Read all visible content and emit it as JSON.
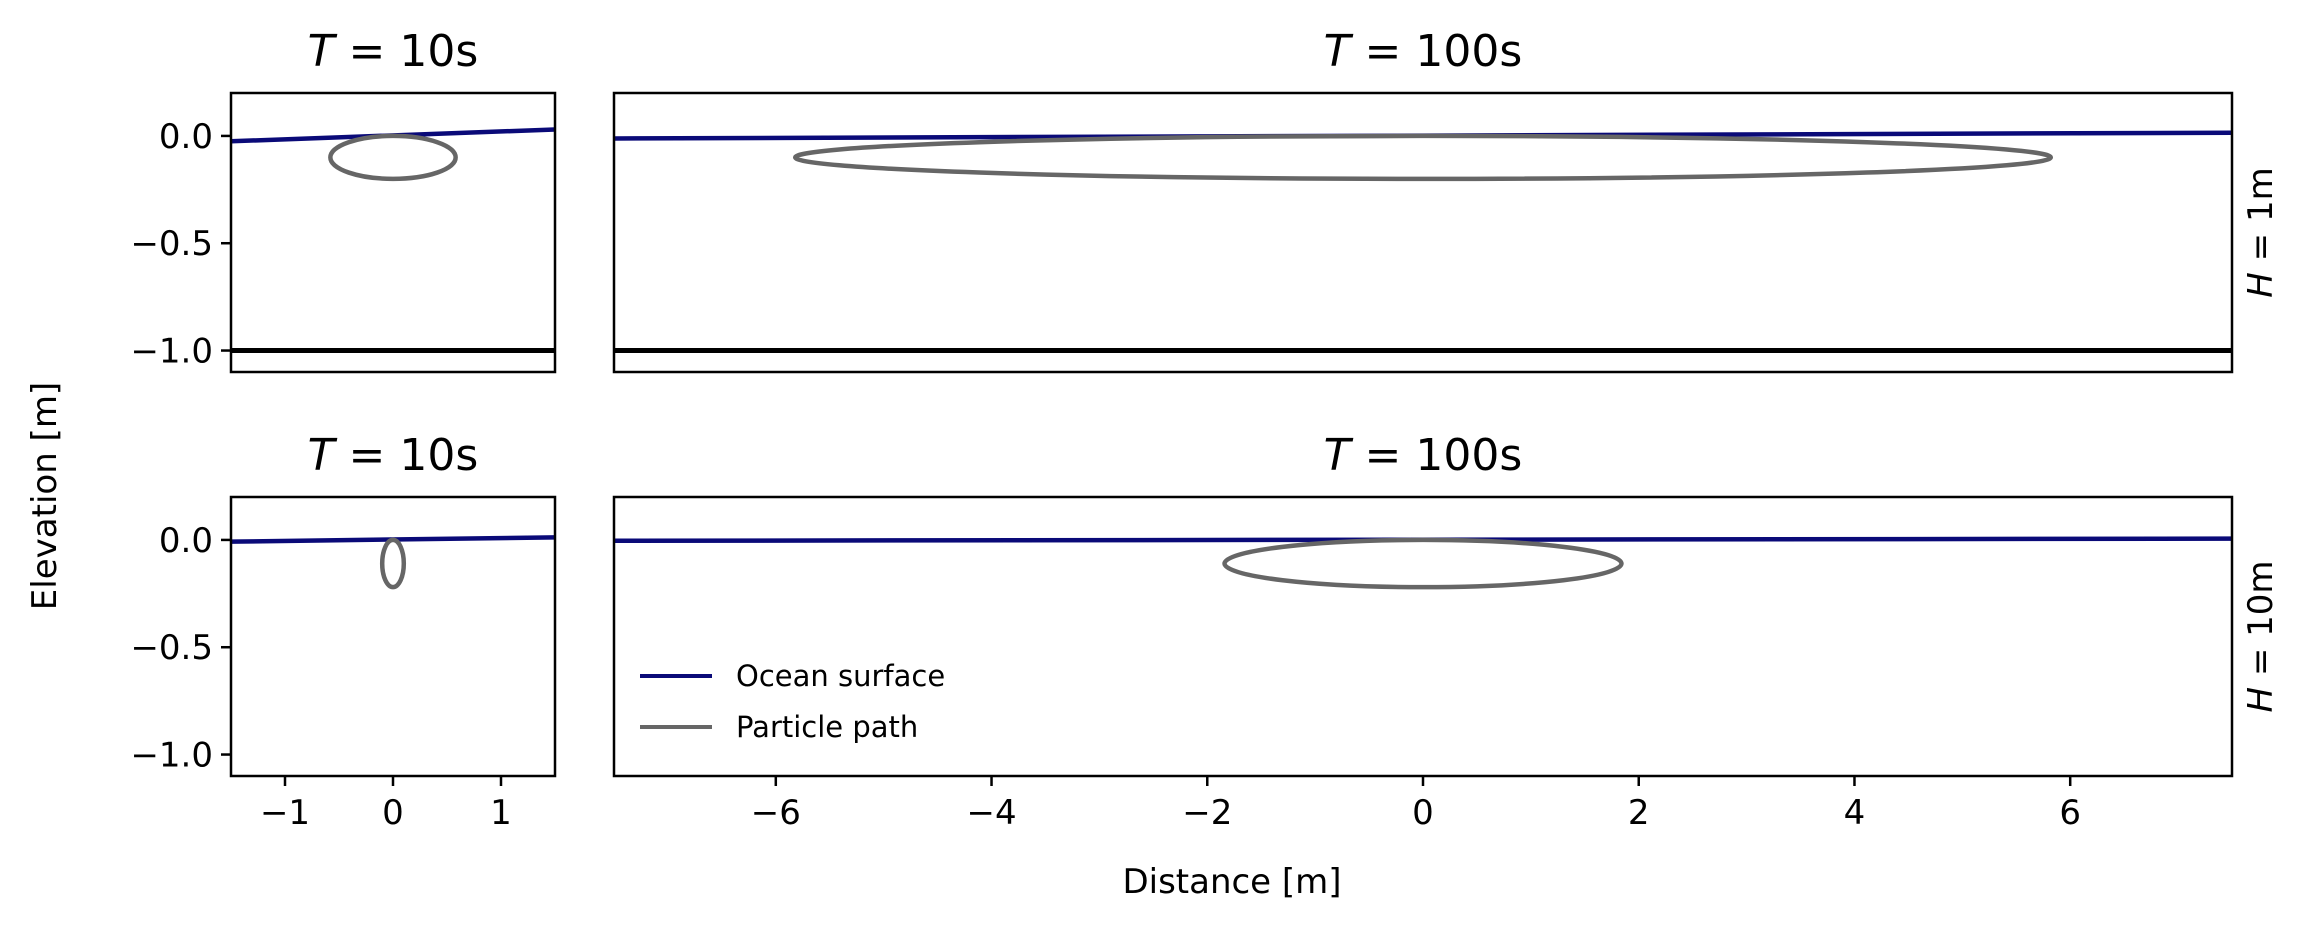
{
  "colors": {
    "surface": "#0a0a78",
    "path": "#666666",
    "bottom": "#000000",
    "frame": "#000000"
  },
  "figure": {
    "xlabel": "Distance [m]",
    "ylabel": "Elevation [m]"
  },
  "legend": {
    "placement": "lower-left",
    "items": [
      {
        "label": "Ocean surface",
        "color": "#0a0a78"
      },
      {
        "label": "Particle path",
        "color": "#666666"
      }
    ]
  },
  "chart_data": [
    {
      "type": "line",
      "panel": "top-left",
      "title_var": "T",
      "title_val": "10s",
      "row_var": "",
      "row_val": "",
      "xlim": [
        -1.5,
        1.5
      ],
      "ylim": [
        -1.1,
        0.2
      ],
      "xticks": [],
      "yticks": [
        0.0,
        -0.5,
        -1.0
      ],
      "ytick_labels": [
        "0.0",
        "−0.5",
        "−1.0"
      ],
      "surface": {
        "x": [
          -1.5,
          1.5
        ],
        "y": [
          -0.025,
          0.03
        ]
      },
      "path": {
        "cx": 0,
        "cy": -0.1,
        "rx": 0.58,
        "ry": 0.1
      },
      "bottom": -1.0
    },
    {
      "type": "line",
      "panel": "top-right",
      "title_var": "T",
      "title_val": "100s",
      "row_var": "H",
      "row_val": "1m",
      "xlim": [
        -7.5,
        7.5
      ],
      "ylim": [
        -1.1,
        0.2
      ],
      "xticks": [],
      "yticks": [],
      "surface": {
        "x": [
          -7.5,
          7.5
        ],
        "y": [
          -0.012,
          0.015
        ]
      },
      "path": {
        "cx": 0,
        "cy": -0.1,
        "rx": 5.82,
        "ry": 0.1
      },
      "bottom": -1.0
    },
    {
      "type": "line",
      "panel": "bottom-left",
      "title_var": "T",
      "title_val": "10s",
      "row_var": "",
      "row_val": "",
      "xlim": [
        -1.5,
        1.5
      ],
      "ylim": [
        -1.1,
        0.2
      ],
      "xticks": [
        -1,
        0,
        1
      ],
      "xtick_labels": [
        "−1",
        "0",
        "1"
      ],
      "yticks": [
        0.0,
        -0.5,
        -1.0
      ],
      "ytick_labels": [
        "0.0",
        "−0.5",
        "−1.0"
      ],
      "surface": {
        "x": [
          -1.5,
          1.5
        ],
        "y": [
          -0.008,
          0.012
        ]
      },
      "path": {
        "cx": 0,
        "cy": -0.11,
        "rx": 0.1,
        "ry": 0.11
      },
      "bottom": null
    },
    {
      "type": "line",
      "panel": "bottom-right",
      "title_var": "T",
      "title_val": "100s",
      "row_var": "H",
      "row_val": "10m",
      "xlim": [
        -7.5,
        7.5
      ],
      "ylim": [
        -1.1,
        0.2
      ],
      "xticks": [
        -6,
        -4,
        -2,
        0,
        2,
        4,
        6
      ],
      "xtick_labels": [
        "−6",
        "−4",
        "−2",
        "0",
        "2",
        "4",
        "6"
      ],
      "yticks": [],
      "surface": {
        "x": [
          -7.5,
          7.5
        ],
        "y": [
          -0.004,
          0.006
        ]
      },
      "path": {
        "cx": 0,
        "cy": -0.11,
        "rx": 1.84,
        "ry": 0.11
      },
      "bottom": null
    }
  ]
}
